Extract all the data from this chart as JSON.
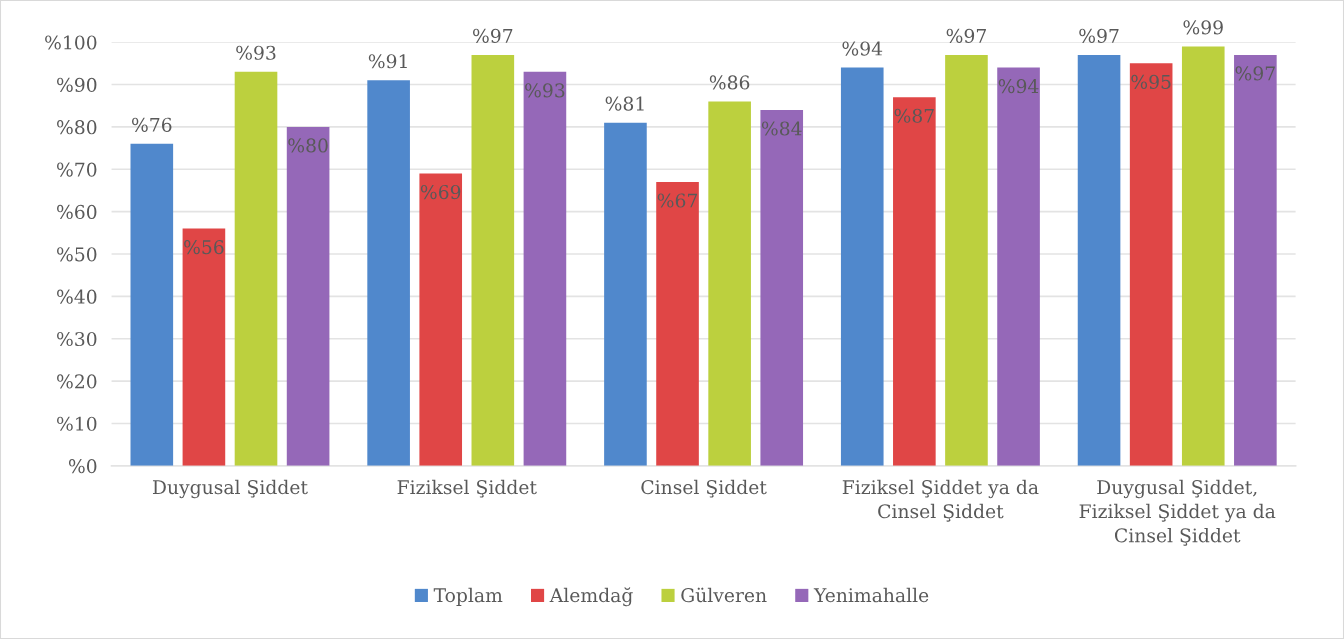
{
  "chart_data": {
    "type": "bar",
    "categories": [
      "Duygusal Şiddet",
      "Fiziksel Şiddet",
      "Cinsel Şiddet",
      "Fiziksel Şiddet ya da\nCinsel Şiddet",
      "Duygusal Şiddet,\nFiziksel Şiddet ya da\nCinsel Şiddet"
    ],
    "series": [
      {
        "name": "Toplam",
        "color": "#5088cc",
        "values": [
          76,
          91,
          81,
          94,
          97
        ],
        "value_labels": [
          "%76",
          "%91",
          "%81",
          "%94",
          "%97"
        ]
      },
      {
        "name": "Alemdağ",
        "color": "#e04646",
        "values": [
          56,
          69,
          67,
          87,
          95
        ],
        "value_labels": [
          "%56",
          "%69",
          "%67",
          "%87",
          "%95"
        ]
      },
      {
        "name": "Gülveren",
        "color": "#bcd03e",
        "values": [
          93,
          97,
          86,
          97,
          99
        ],
        "value_labels": [
          "%93",
          "%97",
          "%86",
          "%97",
          "%99"
        ]
      },
      {
        "name": "Yenimahalle",
        "color": "#9568b8",
        "values": [
          80,
          93,
          84,
          94,
          97
        ],
        "value_labels": [
          "%80",
          "%93",
          "%84",
          "%94",
          "%97"
        ]
      }
    ],
    "ylim": [
      0,
      100
    ],
    "yticks": [
      {
        "value": 0,
        "label": "%0"
      },
      {
        "value": 10,
        "label": "%10"
      },
      {
        "value": 20,
        "label": "%20"
      },
      {
        "value": 30,
        "label": "%30"
      },
      {
        "value": 40,
        "label": "%40"
      },
      {
        "value": 50,
        "label": "%50"
      },
      {
        "value": 60,
        "label": "%60"
      },
      {
        "value": 70,
        "label": "%70"
      },
      {
        "value": 80,
        "label": "%80"
      },
      {
        "value": 90,
        "label": "%90"
      },
      {
        "value": 100,
        "label": "%100"
      }
    ],
    "grid": "y",
    "legend": "bottom"
  }
}
